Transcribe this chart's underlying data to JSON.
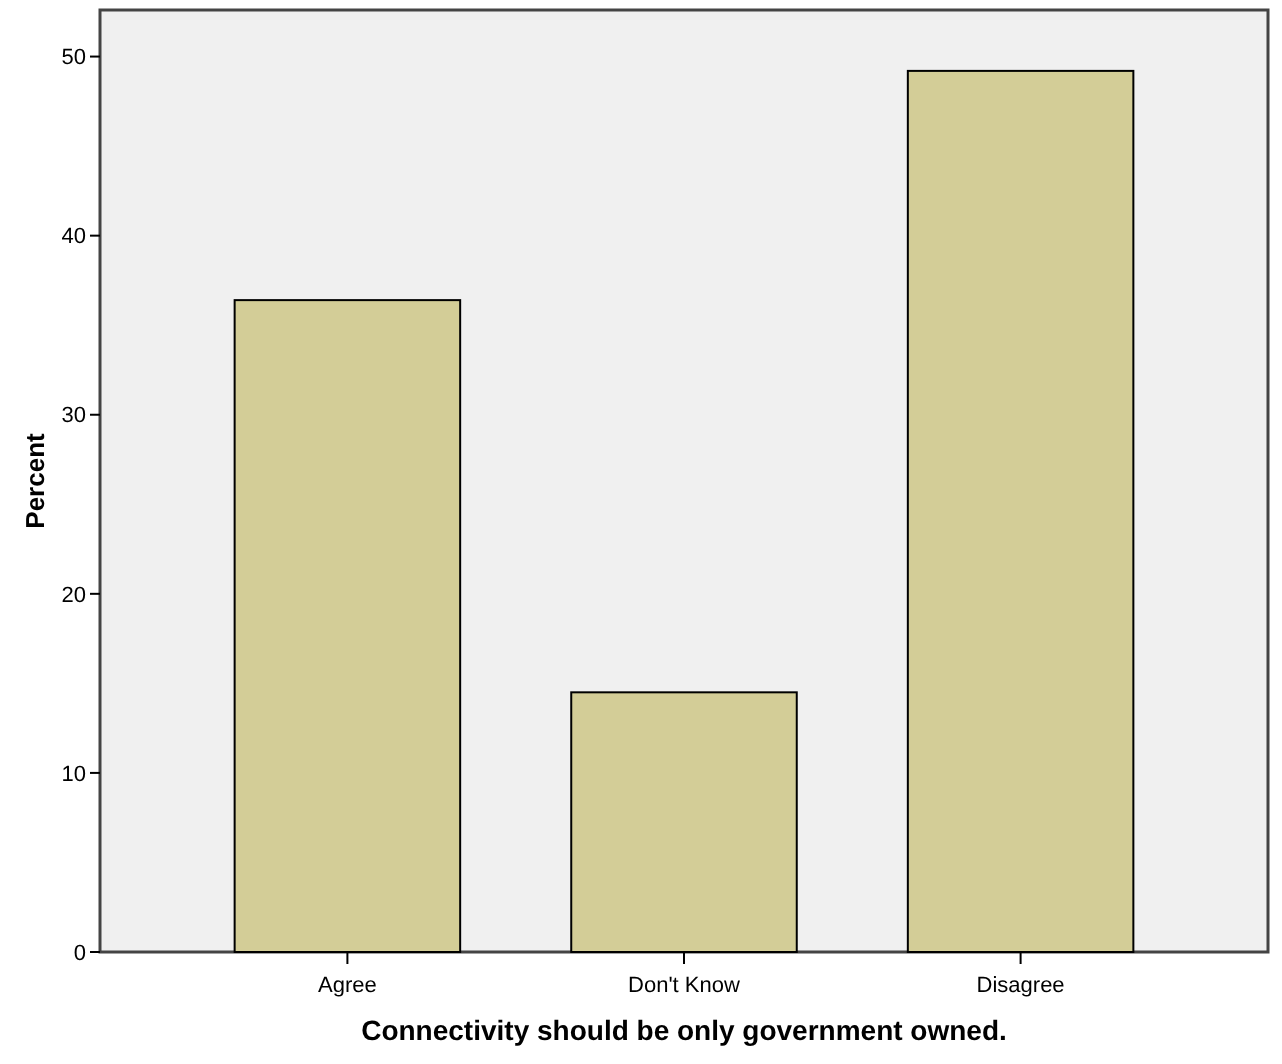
{
  "chart_data": {
    "type": "bar",
    "xlabel": "Connectivity should be only government owned.",
    "ylabel": "Percent",
    "categories": [
      "Agree",
      "Don't Know",
      "Disagree"
    ],
    "values": [
      36.4,
      14.5,
      49.2
    ],
    "color": "#d3cd97",
    "ylim": [
      0,
      52.6
    ],
    "yticks": [
      0,
      10,
      20,
      30,
      40,
      50
    ],
    "grid": false
  }
}
